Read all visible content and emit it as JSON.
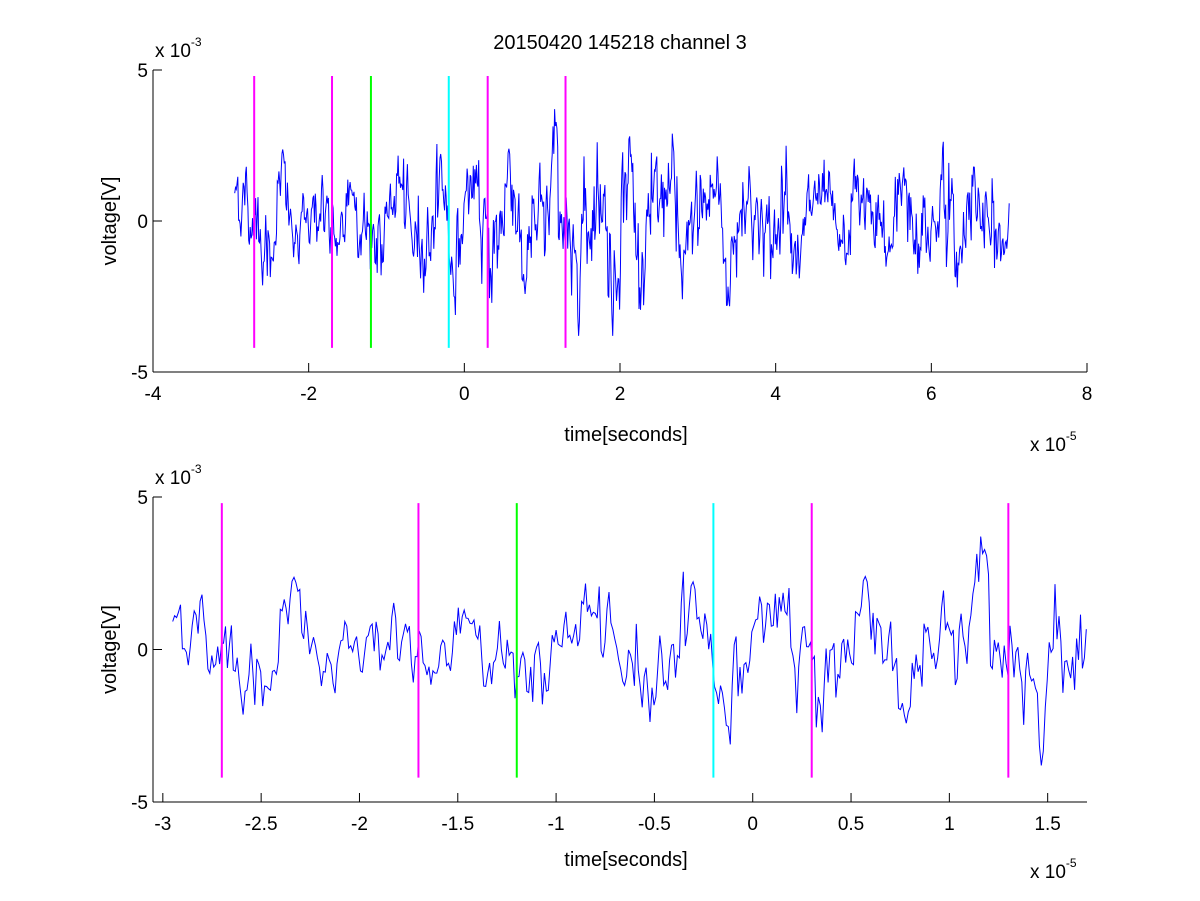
{
  "figure": {
    "title": "20150420 145218 channel 3"
  },
  "chart_data": [
    {
      "type": "line",
      "title": "20150420 145218 channel 3",
      "xlabel": "time[seconds]",
      "ylabel": "voltage[V]",
      "x_multiplier": {
        "base": "x 10",
        "exponent": "-5"
      },
      "y_multiplier": {
        "base": "x 10",
        "exponent": "-3"
      },
      "xlim": [
        -4,
        8
      ],
      "ylim": [
        -5,
        5
      ],
      "xticks": [
        -4,
        -2,
        0,
        2,
        4,
        6,
        8
      ],
      "yticks": [
        -5,
        0,
        5
      ],
      "xtick_labels": [
        "-4",
        "-2",
        "0",
        "2",
        "4",
        "6",
        "8"
      ],
      "ytick_labels": [
        "-5",
        "0",
        "5"
      ],
      "grid": false,
      "series_color": "#0000ff",
      "signal_range": [
        -2.95,
        7.0
      ],
      "markers": [
        {
          "x": -2.7,
          "color": "#ff00ff"
        },
        {
          "x": -1.7,
          "color": "#ff00ff"
        },
        {
          "x": -1.2,
          "color": "#00ff00"
        },
        {
          "x": -0.2,
          "color": "#00ffff"
        },
        {
          "x": 0.3,
          "color": "#ff00ff"
        },
        {
          "x": 1.3,
          "color": "#ff00ff"
        }
      ],
      "marker_y_range": [
        -4.2,
        4.8
      ]
    },
    {
      "type": "line",
      "title": "",
      "xlabel": "time[seconds]",
      "ylabel": "voltage[V]",
      "x_multiplier": {
        "base": "x 10",
        "exponent": "-5"
      },
      "y_multiplier": {
        "base": "x 10",
        "exponent": "-3"
      },
      "xlim": [
        -3.05,
        1.7
      ],
      "ylim": [
        -5,
        5
      ],
      "xticks": [
        -3,
        -2.5,
        -2,
        -1.5,
        -1,
        -0.5,
        0,
        0.5,
        1,
        1.5
      ],
      "yticks": [
        -5,
        0,
        5
      ],
      "xtick_labels": [
        "-3",
        "-2.5",
        "-2",
        "-1.5",
        "-1",
        "-0.5",
        "0",
        "0.5",
        "1",
        "1.5"
      ],
      "ytick_labels": [
        "-5",
        "0",
        "5"
      ],
      "grid": false,
      "series_color": "#0000ff",
      "signal_range": [
        -2.95,
        1.7
      ],
      "markers": [
        {
          "x": -2.7,
          "color": "#ff00ff"
        },
        {
          "x": -1.7,
          "color": "#ff00ff"
        },
        {
          "x": -1.2,
          "color": "#00ff00"
        },
        {
          "x": -0.2,
          "color": "#00ffff"
        },
        {
          "x": 0.3,
          "color": "#ff00ff"
        },
        {
          "x": 1.3,
          "color": "#ff00ff"
        }
      ],
      "marker_y_range": [
        -4.2,
        4.8
      ]
    }
  ]
}
